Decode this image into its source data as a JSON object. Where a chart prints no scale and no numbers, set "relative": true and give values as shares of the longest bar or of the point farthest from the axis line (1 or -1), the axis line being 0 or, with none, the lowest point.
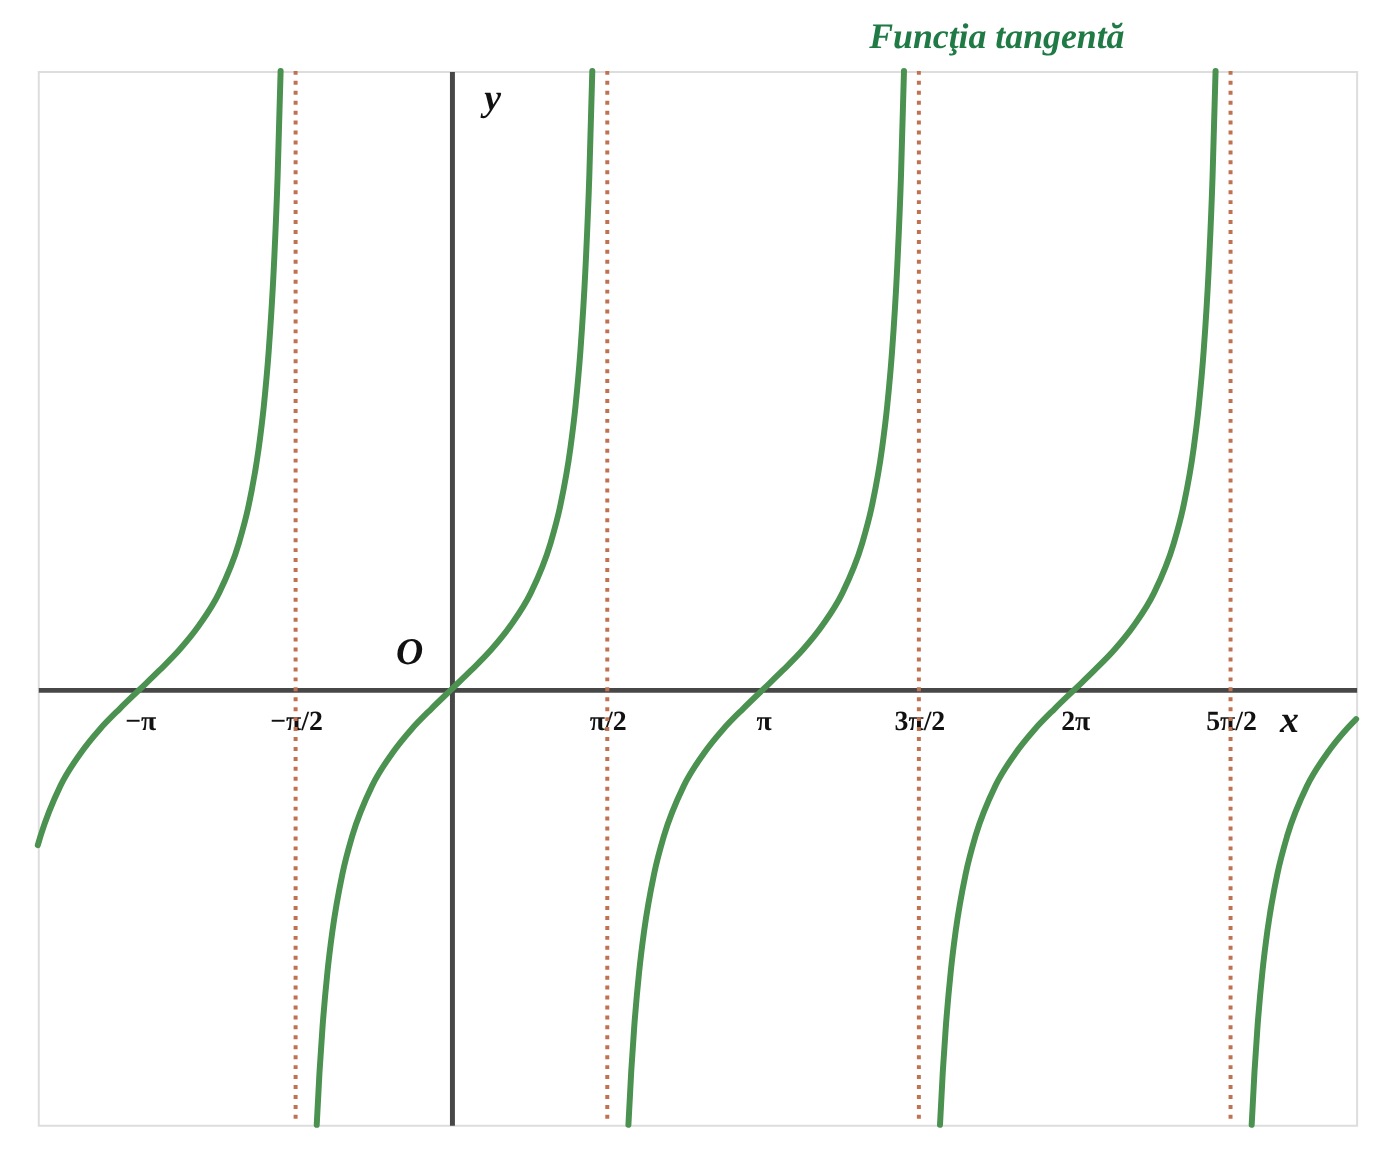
{
  "chart_data": {
    "type": "line",
    "title": "Funcţia tangentă",
    "xlabel": "x",
    "ylabel": "y",
    "relative": true,
    "x": [
      -4.17,
      -4.142,
      -3.942,
      -3.742,
      -3.542,
      -3.342,
      -3.142,
      -2.942,
      -2.742,
      -2.542,
      -2.342,
      -2.142,
      -2.042,
      -1.942,
      -1.892,
      -1.842,
      -1.792,
      -1.752,
      -1.722,
      -1.571,
      -1.358,
      -1.33,
      -1.3,
      -1.25,
      -1.2,
      -1.1,
      -1.0,
      -0.8,
      -0.6,
      -0.4,
      -0.2,
      0,
      0.2,
      0.4,
      0.6,
      0.8,
      1.0,
      1.1,
      1.2,
      1.25,
      1.3,
      1.35,
      1.39,
      1.42,
      1.571,
      1.784,
      1.812,
      1.842,
      1.892,
      1.942,
      2.042,
      2.142,
      2.342,
      2.542,
      2.742,
      2.942,
      3.142,
      3.342,
      3.542,
      3.742,
      3.942,
      4.142,
      4.242,
      4.342,
      4.392,
      4.442,
      4.492,
      4.532,
      4.562,
      4.712,
      4.925,
      4.953,
      4.983,
      5.033,
      5.083,
      5.183,
      5.283,
      5.483,
      5.683,
      5.883,
      6.083,
      6.283,
      6.483,
      6.683,
      6.883,
      7.083,
      7.283,
      7.383,
      7.483,
      7.533,
      7.583,
      7.633,
      7.673,
      7.703,
      7.854,
      8.067,
      8.095,
      8.125,
      8.175,
      8.225,
      8.325,
      8.425,
      8.625,
      8.825,
      9.025,
      9.12
    ],
    "series": [
      {
        "color": "#4b9150",
        "values": [
          -0.252,
          -0.237,
          -0.156,
          -0.104,
          -0.064,
          -0.031,
          0,
          0.031,
          0.064,
          0.104,
          0.156,
          0.237,
          0.299,
          0.391,
          0.457,
          0.547,
          0.677,
          0.831,
          1,
          null,
          -0.704,
          -0.619,
          -0.547,
          -0.457,
          -0.391,
          -0.299,
          -0.237,
          -0.156,
          -0.104,
          -0.064,
          -0.031,
          0,
          0.031,
          0.064,
          0.104,
          0.156,
          0.237,
          0.299,
          0.391,
          0.457,
          0.547,
          0.677,
          0.831,
          1,
          null,
          -0.704,
          -0.619,
          -0.547,
          -0.457,
          -0.391,
          -0.299,
          -0.237,
          -0.156,
          -0.104,
          -0.064,
          -0.031,
          0,
          0.031,
          0.064,
          0.104,
          0.156,
          0.237,
          0.299,
          0.391,
          0.457,
          0.547,
          0.677,
          0.831,
          1,
          null,
          -0.704,
          -0.619,
          -0.547,
          -0.457,
          -0.391,
          -0.299,
          -0.237,
          -0.156,
          -0.104,
          -0.064,
          -0.031,
          0,
          0.031,
          0.064,
          0.104,
          0.156,
          0.237,
          0.299,
          0.391,
          0.457,
          0.547,
          0.677,
          0.831,
          1,
          null,
          -0.704,
          -0.619,
          -0.547,
          -0.457,
          -0.391,
          -0.299,
          -0.237,
          -0.156,
          -0.104,
          -0.064,
          -0.048
        ]
      }
    ],
    "xlim": [
      -4.17,
      9.12
    ],
    "xticks": [
      {
        "value": -3.142,
        "label": "−π"
      },
      {
        "value": -1.571,
        "label": "−π/2"
      },
      {
        "value": 1.571,
        "label": "π/2"
      },
      {
        "value": 3.142,
        "label": "π"
      },
      {
        "value": 4.712,
        "label": "3π/2"
      },
      {
        "value": 6.283,
        "label": "2π"
      },
      {
        "value": 7.854,
        "label": "5π/2"
      }
    ],
    "ref_lines": [
      {
        "axis": "x",
        "value": -1.571,
        "color": "#c0714f",
        "line_style": "dotted"
      },
      {
        "axis": "x",
        "value": 1.571,
        "color": "#c0714f",
        "line_style": "dotted"
      },
      {
        "axis": "x",
        "value": 4.712,
        "color": "#c0714f",
        "line_style": "dotted"
      },
      {
        "axis": "x",
        "value": 7.854,
        "color": "#c0714f",
        "line_style": "dotted"
      }
    ],
    "annotations": [
      {
        "text": "O",
        "x": 0,
        "y": 0
      }
    ],
    "grid": false
  }
}
